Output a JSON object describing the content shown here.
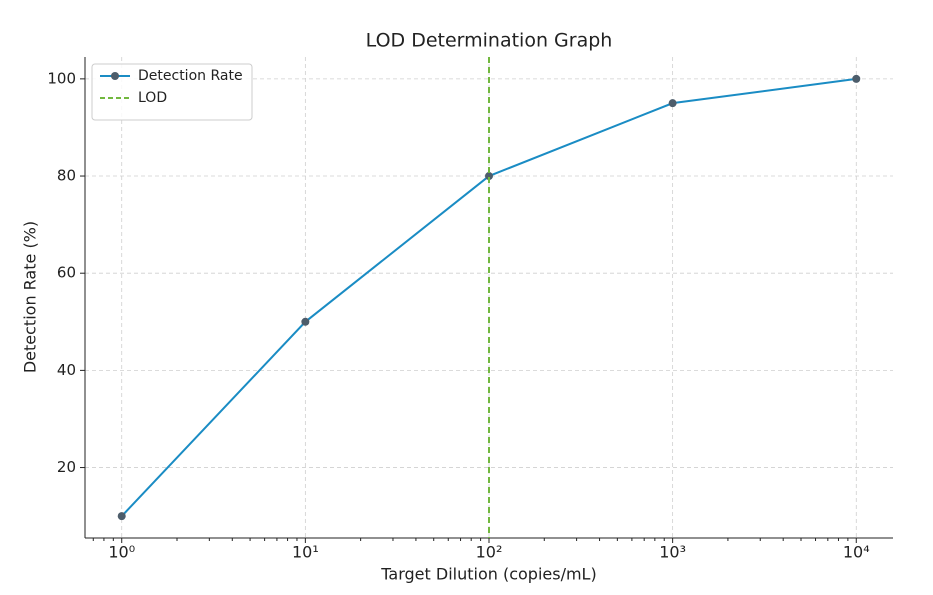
{
  "chart_data": {
    "type": "line",
    "title": "LOD Determination Graph",
    "x_label": "Target Dilution (copies/mL)",
    "y_label": "Detection Rate (%)",
    "x": [
      1,
      10,
      100,
      1000,
      10000
    ],
    "series": [
      {
        "name": "Detection Rate",
        "color": "#1a8cc4",
        "marker_color": "#4d5d6b",
        "values": [
          10,
          50,
          80,
          95,
          100
        ]
      }
    ],
    "vlines": [
      {
        "name": "LOD",
        "x": 100,
        "color": "#72b83f"
      }
    ],
    "xscale": "log",
    "xlim": [
      0.631,
      15849
    ],
    "ylim": [
      5.5,
      104.5
    ],
    "xticks": [
      {
        "value": 1,
        "label": "10⁰"
      },
      {
        "value": 10,
        "label": "10¹"
      },
      {
        "value": 100,
        "label": "10²"
      },
      {
        "value": 1000,
        "label": "10³"
      },
      {
        "value": 10000,
        "label": "10⁴"
      }
    ],
    "xminorticks": [
      0.7,
      0.8,
      0.9,
      2,
      3,
      4,
      5,
      6,
      7,
      8,
      9,
      20,
      30,
      40,
      50,
      60,
      70,
      80,
      90,
      200,
      300,
      400,
      500,
      600,
      700,
      800,
      900,
      2000,
      3000,
      4000,
      5000,
      6000,
      7000,
      8000,
      9000
    ],
    "yticks": [
      20,
      40,
      60,
      80,
      100
    ],
    "grid": true,
    "legend": "upper left"
  }
}
